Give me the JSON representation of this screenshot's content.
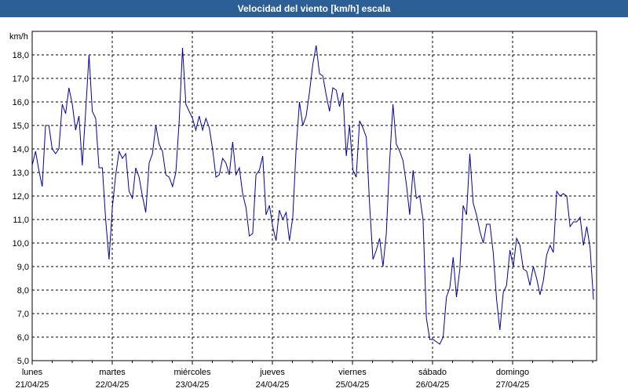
{
  "chart_data": {
    "type": "line",
    "title": "Velocidad del viento [km/h] escala",
    "ylabel": "km/h",
    "xlabel": "",
    "ylim": [
      5.0,
      19.0
    ],
    "yticks": [
      "5,0",
      "6,0",
      "7,0",
      "8,0",
      "9,0",
      "10,0",
      "11,0",
      "12,0",
      "13,0",
      "14,0",
      "15,0",
      "16,0",
      "17,0",
      "18,0"
    ],
    "x_days": [
      {
        "day": "lunes",
        "date": "21/04/25"
      },
      {
        "day": "martes",
        "date": "22/04/25"
      },
      {
        "day": "miércoles",
        "date": "23/04/25"
      },
      {
        "day": "jueves",
        "date": "24/04/25"
      },
      {
        "day": "viernes",
        "date": "25/04/25"
      },
      {
        "day": "sábado",
        "date": "26/04/25"
      },
      {
        "day": "domingo",
        "date": "27/04/25"
      }
    ],
    "grid": true,
    "line_color": "#0000a0",
    "series": [
      {
        "x_start": "21/04/25 00:00",
        "x_step_hours": 1,
        "values": [
          13.3,
          13.9,
          13.1,
          12.4,
          15.0,
          15.0,
          14.0,
          13.8,
          14.0,
          15.9,
          15.5,
          16.6,
          15.9,
          14.8,
          15.4,
          13.3,
          15.6,
          18.0,
          15.6,
          15.3,
          13.2,
          13.2,
          11.0,
          9.3,
          11.5,
          12.9,
          13.9,
          13.6,
          13.8,
          12.2,
          11.9,
          13.2,
          12.8,
          12.0,
          11.3,
          13.4,
          13.8,
          15.0,
          14.2,
          13.9,
          12.9,
          12.8,
          12.4,
          13.0,
          15.2,
          18.3,
          15.9,
          15.6,
          15.3,
          14.8,
          15.4,
          14.8,
          15.3,
          14.9,
          14.0,
          12.8,
          12.9,
          13.6,
          13.4,
          12.9,
          14.3,
          12.9,
          13.2,
          12.1,
          11.5,
          10.3,
          10.4,
          12.9,
          13.1,
          13.7,
          11.2,
          11.6,
          10.7,
          10.1,
          11.4,
          11.0,
          11.3,
          10.1,
          11.1,
          14.0,
          16.0,
          15.0,
          15.4,
          16.4,
          17.6,
          18.4,
          17.2,
          17.1,
          16.3,
          15.6,
          16.6,
          16.5,
          15.8,
          16.4,
          13.7,
          15.0,
          13.1,
          12.8,
          15.2,
          14.9,
          14.5,
          11.6,
          9.3,
          9.7,
          10.2,
          9.0,
          10.4,
          13.5,
          15.9,
          14.2,
          13.9,
          13.5,
          12.5,
          11.2,
          13.1,
          11.9,
          12.0,
          11.0,
          6.8,
          5.9,
          5.9,
          5.8,
          5.7,
          6.0,
          7.7,
          8.1,
          9.4,
          7.7,
          8.9,
          11.6,
          11.2,
          13.8,
          11.7,
          11.2,
          10.5,
          10.0,
          10.8,
          10.8,
          9.6,
          7.6,
          6.3,
          7.9,
          8.2,
          9.7,
          9.0,
          10.2,
          9.9,
          8.9,
          8.8,
          8.2,
          9.0,
          8.5,
          7.8,
          8.4,
          9.5,
          9.9,
          9.6,
          12.2,
          12.0,
          12.1,
          12.0,
          10.7,
          10.9,
          10.9,
          11.1,
          9.9,
          10.7,
          9.8,
          7.6
        ]
      }
    ]
  }
}
